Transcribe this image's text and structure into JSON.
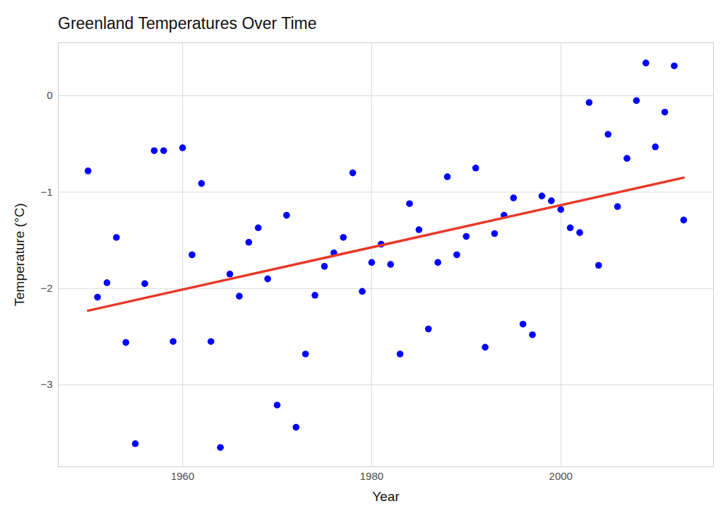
{
  "chart_data": {
    "type": "scatter",
    "title": "Greenland Temperatures Over Time",
    "x_label": "Year",
    "y_label": "Temperature (°C)",
    "series": [
      {
        "type": "scatter",
        "color": "#0000ff",
        "marker": "circle",
        "x": [
          1950,
          1951,
          1952,
          1953,
          1954,
          1955,
          1956,
          1957,
          1958,
          1959,
          1960,
          1961,
          1962,
          1963,
          1964,
          1965,
          1966,
          1967,
          1968,
          1969,
          1970,
          1971,
          1972,
          1973,
          1974,
          1975,
          1976,
          1977,
          1978,
          1979,
          1980,
          1981,
          1982,
          1983,
          1984,
          1985,
          1986,
          1987,
          1988,
          1989,
          1990,
          1991,
          1992,
          1993,
          1994,
          1995,
          1996,
          1997,
          1998,
          1999,
          2000,
          2001,
          2002,
          2003,
          2004,
          2005,
          2006,
          2007,
          2008,
          2009,
          2010,
          2011,
          2012,
          2013
        ],
        "values": [
          -0.78,
          -2.09,
          -1.94,
          -1.47,
          -2.56,
          -3.61,
          -1.95,
          -0.57,
          -0.57,
          -2.55,
          -0.54,
          -1.65,
          -0.91,
          -2.55,
          -3.65,
          -1.85,
          -2.08,
          -1.52,
          -1.37,
          -1.9,
          -3.21,
          -1.24,
          -3.44,
          -2.68,
          -2.07,
          -1.77,
          -1.63,
          -1.47,
          -0.8,
          -2.03,
          -1.73,
          -1.54,
          -1.75,
          -2.68,
          -1.12,
          -1.39,
          -2.42,
          -1.73,
          -0.84,
          -1.65,
          -1.46,
          -0.75,
          -2.61,
          -1.43,
          -1.24,
          -1.06,
          -2.37,
          -2.48,
          -1.04,
          -1.09,
          -1.18,
          -1.37,
          -1.42,
          -0.07,
          -1.76,
          -0.4,
          -1.15,
          -0.65,
          -0.05,
          0.34,
          -0.53,
          -0.17,
          0.31,
          -1.29
        ]
      },
      {
        "type": "line",
        "color": "#e8392a",
        "line_style": "solid",
        "x": [
          1950,
          2013
        ],
        "values": [
          -2.23,
          -0.85
        ]
      }
    ],
    "xlim": [
      1946.85,
      2016.15
    ],
    "xticks": [
      1960,
      1980,
      2000
    ],
    "ylim": [
      -3.85,
      0.55
    ],
    "yticks": [
      -3,
      -2,
      -1,
      0
    ],
    "grid": true
  }
}
